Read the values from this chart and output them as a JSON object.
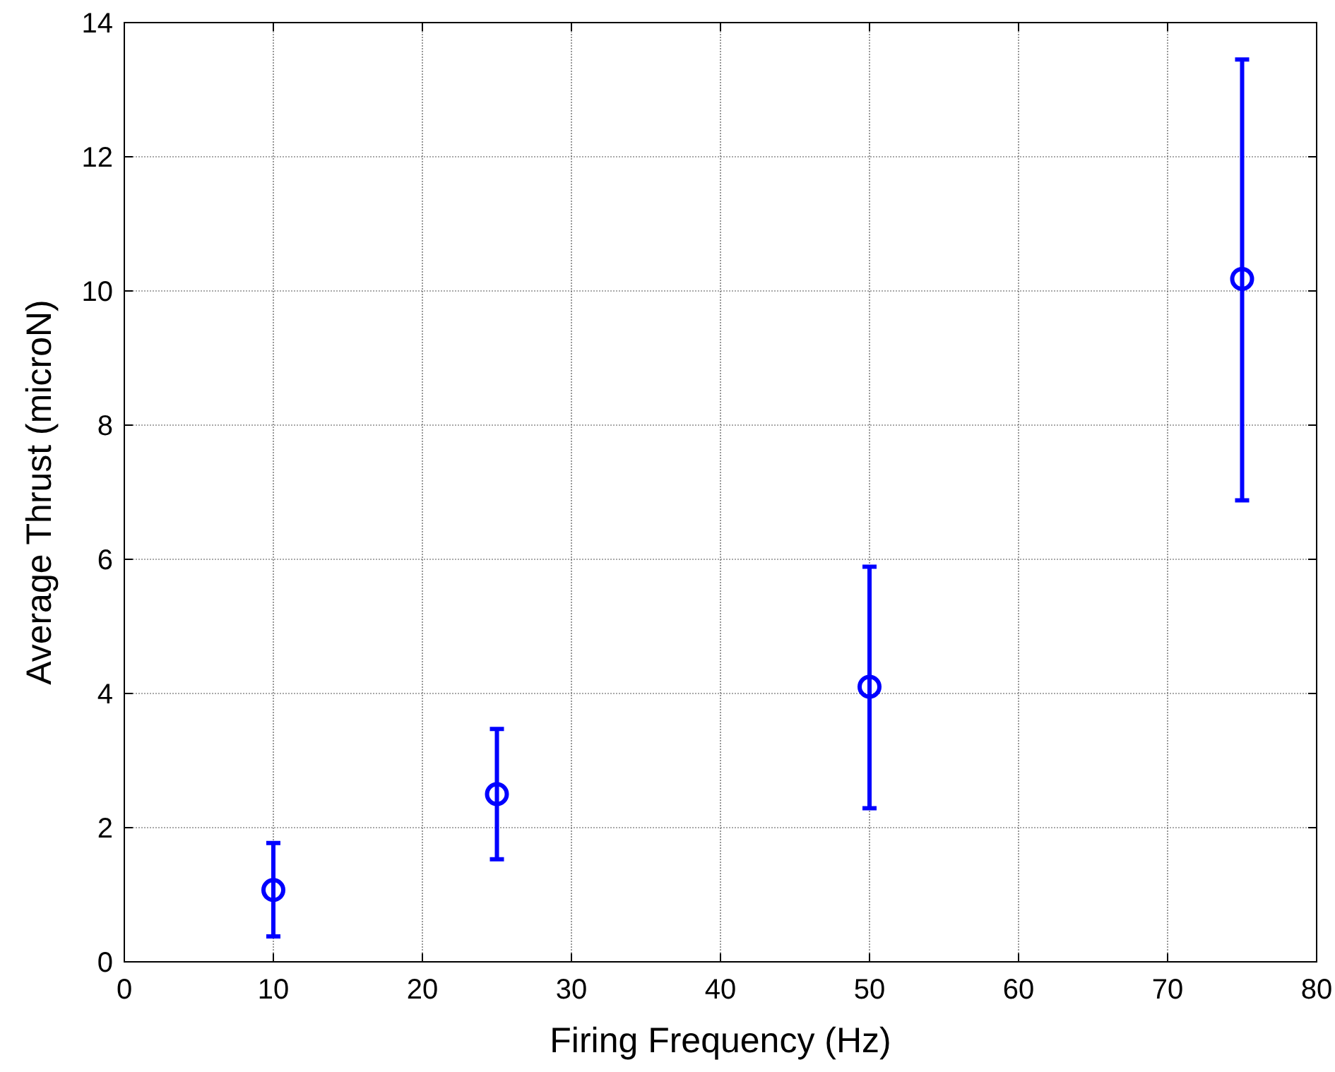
{
  "chart_data": {
    "type": "scatter",
    "xlabel": "Firing Frequency (Hz)",
    "ylabel": "Average Thrust (microN)",
    "x": [
      10,
      25,
      50,
      75
    ],
    "series": [
      {
        "color": "#0000ff",
        "values": [
          1.07,
          2.5,
          4.1,
          10.18
        ],
        "errors": [
          [
            0.38,
            1.77
          ],
          [
            1.53,
            3.47
          ],
          [
            2.29,
            5.89
          ],
          [
            6.88,
            13.45
          ]
        ]
      }
    ],
    "xlim": [
      0,
      80
    ],
    "xticks": [
      0,
      10,
      20,
      30,
      40,
      50,
      60,
      70,
      80
    ],
    "ylim": [
      0,
      14
    ],
    "yticks": [
      0,
      2,
      4,
      6,
      8,
      10,
      12,
      14
    ],
    "grid": true,
    "marker": "circle"
  }
}
